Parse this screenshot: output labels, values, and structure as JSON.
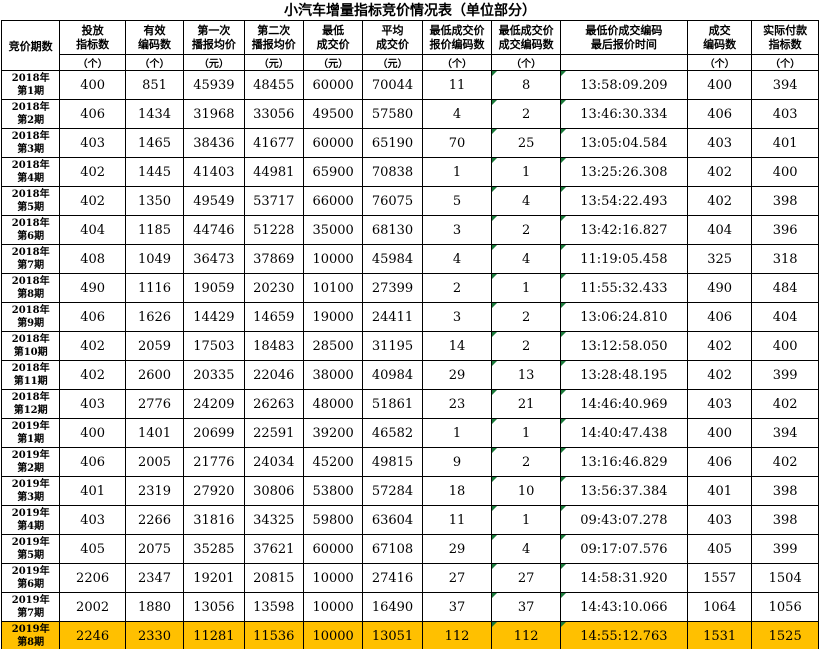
{
  "title": "小汽车增量指标竞价情况表（单位部分）",
  "header": {
    "period_label": "竞价期数",
    "columns": [
      {
        "line1": "投放",
        "line2": "指标数",
        "unit": "（个）"
      },
      {
        "line1": "有效",
        "line2": "编码数",
        "unit": "（个）"
      },
      {
        "line1": "第一次",
        "line2": "播报均价",
        "unit": "（元）"
      },
      {
        "line1": "第二次",
        "line2": "播报均价",
        "unit": "（元）"
      },
      {
        "line1": "最低",
        "line2": "成交价",
        "unit": "（元）"
      },
      {
        "line1": "平均",
        "line2": "成交价",
        "unit": "（元）"
      },
      {
        "line1": "最低成交价",
        "line2": "报价编码数",
        "unit": "（个）"
      },
      {
        "line1": "最低成交价",
        "line2": "成交编码数",
        "unit": "（个）"
      },
      {
        "line1": "最低价成交编码",
        "line2": "最后报价时间",
        "unit": ""
      },
      {
        "line1": "成交",
        "line2": "编码数",
        "unit": "（个）"
      },
      {
        "line1": "实际付款",
        "line2": "指标数",
        "unit": "（个）"
      }
    ]
  },
  "rows": [
    {
      "year": "2018年",
      "period": "第1期",
      "values": [
        "400",
        "851",
        "45939",
        "48455",
        "60000",
        "70044",
        "11",
        "8",
        "13:58:09.209",
        "400",
        "394"
      ]
    },
    {
      "year": "2018年",
      "period": "第2期",
      "values": [
        "406",
        "1434",
        "31968",
        "33056",
        "49500",
        "57580",
        "4",
        "2",
        "13:46:30.334",
        "406",
        "403"
      ]
    },
    {
      "year": "2018年",
      "period": "第3期",
      "values": [
        "403",
        "1465",
        "38436",
        "41677",
        "60000",
        "65190",
        "70",
        "25",
        "13:05:04.584",
        "403",
        "401"
      ]
    },
    {
      "year": "2018年",
      "period": "第4期",
      "values": [
        "402",
        "1445",
        "41403",
        "44981",
        "65900",
        "70838",
        "1",
        "1",
        "13:25:26.308",
        "402",
        "400"
      ]
    },
    {
      "year": "2018年",
      "period": "第5期",
      "values": [
        "402",
        "1350",
        "49549",
        "53717",
        "66000",
        "76075",
        "5",
        "4",
        "13:54:22.493",
        "402",
        "398"
      ]
    },
    {
      "year": "2018年",
      "period": "第6期",
      "values": [
        "404",
        "1185",
        "44746",
        "51228",
        "35000",
        "68130",
        "3",
        "2",
        "13:42:16.827",
        "404",
        "396"
      ]
    },
    {
      "year": "2018年",
      "period": "第7期",
      "values": [
        "408",
        "1049",
        "36473",
        "37869",
        "10000",
        "45984",
        "4",
        "4",
        "11:19:05.458",
        "325",
        "318"
      ]
    },
    {
      "year": "2018年",
      "period": "第8期",
      "values": [
        "490",
        "1116",
        "19059",
        "20230",
        "10100",
        "27399",
        "2",
        "1",
        "11:55:32.433",
        "490",
        "484"
      ]
    },
    {
      "year": "2018年",
      "period": "第9期",
      "values": [
        "406",
        "1626",
        "14429",
        "14659",
        "19000",
        "24411",
        "3",
        "2",
        "13:06:24.810",
        "406",
        "404"
      ]
    },
    {
      "year": "2018年",
      "period": "第10期",
      "values": [
        "402",
        "2059",
        "17503",
        "18483",
        "28500",
        "31195",
        "14",
        "2",
        "13:12:58.050",
        "402",
        "400"
      ]
    },
    {
      "year": "2018年",
      "period": "第11期",
      "values": [
        "402",
        "2600",
        "20335",
        "22046",
        "38000",
        "40984",
        "29",
        "13",
        "13:28:48.195",
        "402",
        "399"
      ]
    },
    {
      "year": "2018年",
      "period": "第12期",
      "values": [
        "403",
        "2776",
        "24209",
        "26263",
        "48000",
        "51861",
        "23",
        "21",
        "14:46:40.969",
        "403",
        "402"
      ]
    },
    {
      "year": "2019年",
      "period": "第1期",
      "values": [
        "400",
        "1401",
        "20699",
        "22591",
        "39200",
        "46582",
        "1",
        "1",
        "14:40:47.438",
        "400",
        "394"
      ]
    },
    {
      "year": "2019年",
      "period": "第2期",
      "values": [
        "406",
        "2005",
        "21776",
        "24034",
        "45200",
        "49815",
        "9",
        "2",
        "13:16:46.829",
        "406",
        "402"
      ]
    },
    {
      "year": "2019年",
      "period": "第3期",
      "values": [
        "401",
        "2319",
        "27920",
        "30806",
        "53800",
        "57284",
        "18",
        "10",
        "13:56:37.384",
        "401",
        "398"
      ]
    },
    {
      "year": "2019年",
      "period": "第4期",
      "values": [
        "403",
        "2266",
        "31816",
        "34325",
        "59800",
        "63604",
        "11",
        "1",
        "09:43:07.278",
        "403",
        "398"
      ]
    },
    {
      "year": "2019年",
      "period": "第5期",
      "values": [
        "405",
        "2075",
        "35285",
        "37621",
        "60000",
        "67108",
        "29",
        "4",
        "09:17:07.576",
        "405",
        "399"
      ]
    },
    {
      "year": "2019年",
      "period": "第6期",
      "values": [
        "2206",
        "2347",
        "19201",
        "20815",
        "10000",
        "27416",
        "27",
        "27",
        "14:58:31.920",
        "1557",
        "1504"
      ]
    },
    {
      "year": "2019年",
      "period": "第7期",
      "values": [
        "2002",
        "1880",
        "13056",
        "13598",
        "10000",
        "16490",
        "37",
        "37",
        "14:43:10.066",
        "1064",
        "1056"
      ]
    },
    {
      "year": "2019年",
      "period": "第8期",
      "values": [
        "2246",
        "2330",
        "11281",
        "11536",
        "10000",
        "13051",
        "112",
        "112",
        "14:55:12.763",
        "1531",
        "1525"
      ],
      "highlight": true
    }
  ],
  "colors": {
    "highlight": "#ffc000",
    "border": "#000000",
    "marker": "#1a7a3a"
  }
}
